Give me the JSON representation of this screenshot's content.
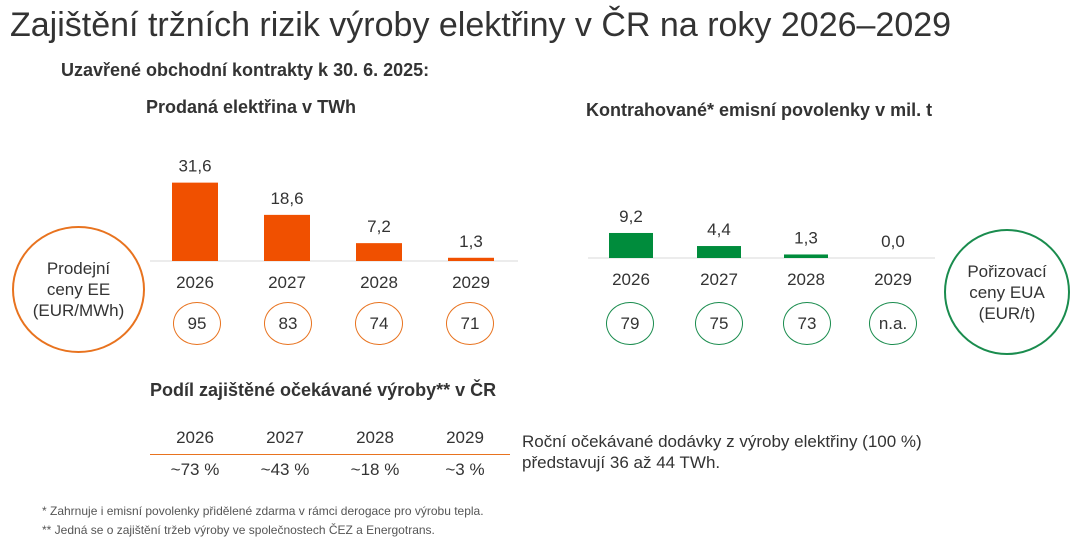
{
  "title": "Zajištění tržních rizik výroby elektřiny v ČR na roky 2026–2029",
  "subtitle": "Uzavřené obchodní kontrakty k 30. 6. 2025:",
  "colors": {
    "orange": "#f05000",
    "green": "#008c3c",
    "axis": "#d9d9d9",
    "hedge_line": "#e8731f"
  },
  "chart_data": [
    {
      "type": "bar",
      "title": "Prodaná elektřina v TWh",
      "categories": [
        "2026",
        "2027",
        "2028",
        "2029"
      ],
      "values": [
        31.6,
        18.6,
        7.2,
        1.3
      ],
      "value_labels": [
        "31,6",
        "18,6",
        "7,2",
        "1,3"
      ],
      "color": "#f05000"
    },
    {
      "type": "bar",
      "title": "Kontrahované* emisní povolenky v mil. t",
      "categories": [
        "2026",
        "2027",
        "2028",
        "2029"
      ],
      "values": [
        9.2,
        4.4,
        1.3,
        0.0
      ],
      "value_labels": [
        "9,2",
        "4,4",
        "1,3",
        "0,0"
      ],
      "color": "#008c3c"
    }
  ],
  "price_left": {
    "line1": "Prodejní",
    "line2": "ceny EE",
    "line3": "(EUR/MWh)",
    "values": [
      "95",
      "83",
      "74",
      "71"
    ]
  },
  "price_right": {
    "line1": "Pořizovací",
    "line2": "ceny EUA",
    "line3": "(EUR/t)",
    "values": [
      "79",
      "75",
      "73",
      "n.a."
    ]
  },
  "hedge": {
    "title": "Podíl zajištěné očekávané výroby** v ČR",
    "years": [
      "2026",
      "2027",
      "2028",
      "2029"
    ],
    "shares": [
      "~73 %",
      "~43 %",
      "~18 %",
      "~3 %"
    ],
    "note": "Roční očekávané dodávky z výroby elektřiny (100 %) představují 36 až 44 TWh."
  },
  "footnotes": [
    "*   Zahrnuje i emisní povolenky přidělené zdarma v rámci derogace pro výrobu tepla.",
    "**  Jedná se o zajištění tržeb výroby ve společnostech ČEZ a Energotrans."
  ]
}
